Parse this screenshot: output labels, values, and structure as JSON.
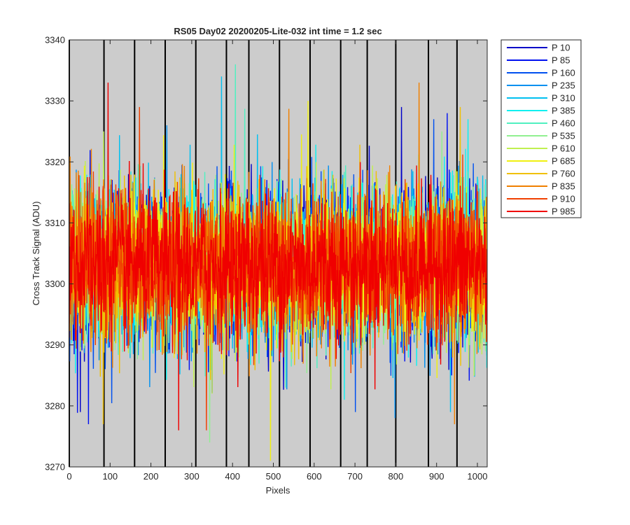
{
  "chart_data": {
    "type": "line",
    "title": "RS05 Day02 20200205-Lite-032 int time = 1.2 sec",
    "xlabel": "Pixels",
    "ylabel": "Cross Track Signal (ADU)",
    "xlim": [
      0,
      1024
    ],
    "ylim": [
      3270,
      3340
    ],
    "xticks": [
      0,
      100,
      200,
      300,
      400,
      500,
      600,
      700,
      800,
      900,
      1000
    ],
    "yticks": [
      3270,
      3280,
      3290,
      3300,
      3310,
      3320,
      3330,
      3340
    ],
    "xtick_labels": [
      "0",
      "100",
      "200",
      "300",
      "400",
      "500",
      "600",
      "700",
      "800",
      "900",
      "1000"
    ],
    "ytick_labels": [
      "3270",
      "3280",
      "3290",
      "3300",
      "3310",
      "3320",
      "3330",
      "3340"
    ],
    "background_color": "#cccccc",
    "grid": false,
    "legend_position": "outside-top-right",
    "vertical_lines_x": [
      0,
      85,
      160,
      235,
      310,
      385,
      440,
      515,
      590,
      665,
      730,
      800,
      880,
      950
    ],
    "vertical_line_color": "#000000",
    "noise_mean": 3303,
    "noise_std": 6,
    "series": [
      {
        "name": "P 10",
        "color": "#0000c8",
        "min": 3279,
        "max": 3329
      },
      {
        "name": "P 85",
        "color": "#0010f0",
        "min": 3277,
        "max": 3328
      },
      {
        "name": "P 160",
        "color": "#0050f0",
        "min": 3279,
        "max": 3327
      },
      {
        "name": "P 235",
        "color": "#0090f0",
        "min": 3278,
        "max": 3326
      },
      {
        "name": "P 310",
        "color": "#00c0f0",
        "min": 3279,
        "max": 3334
      },
      {
        "name": "P 385",
        "color": "#10f0f0",
        "min": 3281,
        "max": 3327
      },
      {
        "name": "P 460",
        "color": "#50f0c0",
        "min": 3283,
        "max": 3336
      },
      {
        "name": "P 535",
        "color": "#90f090",
        "min": 3274,
        "max": 3325
      },
      {
        "name": "P 610",
        "color": "#c0f050",
        "min": 3282,
        "max": 3325
      },
      {
        "name": "P 685",
        "color": "#f0f010",
        "min": 3271,
        "max": 3330
      },
      {
        "name": "P 760",
        "color": "#f0c000",
        "min": 3277,
        "max": 3329
      },
      {
        "name": "P 835",
        "color": "#f08000",
        "min": 3277,
        "max": 3333
      },
      {
        "name": "P 910",
        "color": "#f04000",
        "min": 3276,
        "max": 3329
      },
      {
        "name": "P 985",
        "color": "#f00000",
        "min": 3276,
        "max": 3333
      }
    ]
  }
}
